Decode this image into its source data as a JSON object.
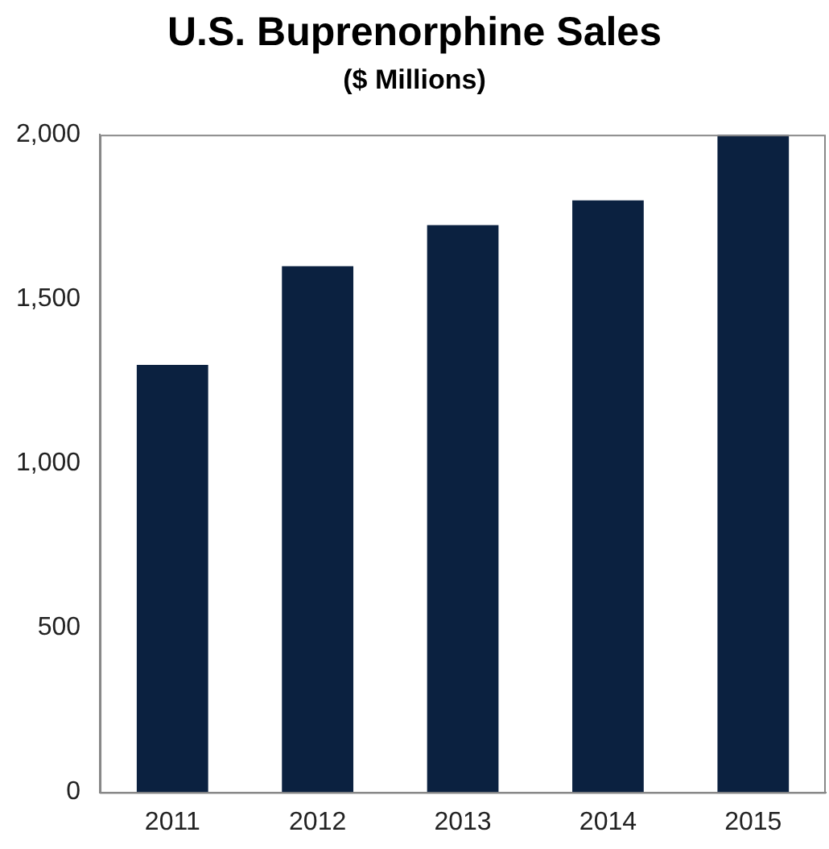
{
  "chart_data": {
    "type": "bar",
    "title": "U.S. Buprenorphine Sales",
    "subtitle": "($ Millions)",
    "categories": [
      "2011",
      "2012",
      "2013",
      "2014",
      "2015"
    ],
    "values": [
      1300,
      1600,
      1725,
      1800,
      2000
    ],
    "color": "#0b2140",
    "ylim": [
      0,
      2000
    ],
    "yticks": [
      0,
      {
        "value": 500,
        "label": "500"
      },
      {
        "value": 1000,
        "label": "1,000"
      },
      {
        "value": 1500,
        "label": "1,500"
      },
      {
        "value": 2000,
        "label": "2,000"
      }
    ],
    "grid": false,
    "legend": false
  }
}
